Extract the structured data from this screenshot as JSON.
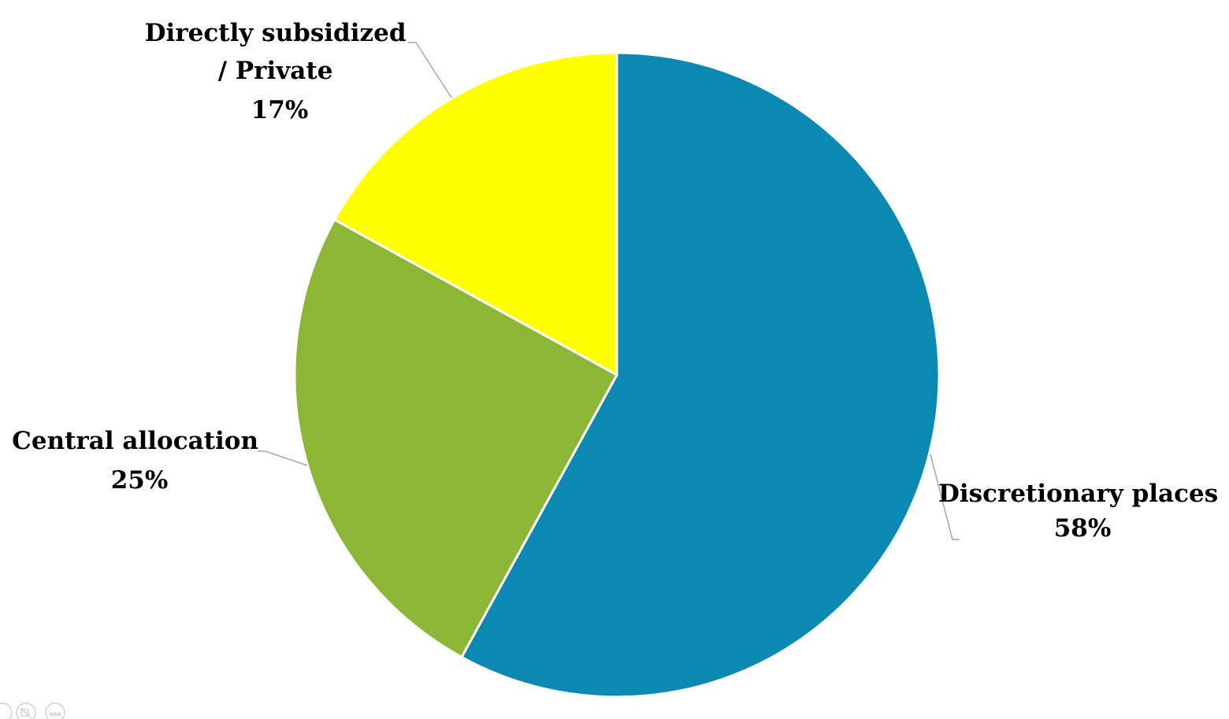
{
  "chart_data": {
    "type": "pie",
    "title": "",
    "start_angle_deg": 0,
    "direction": "clockwise",
    "legend": "none",
    "slices": [
      {
        "label": "Discretionary places",
        "label_lines": [
          "Discretionary places"
        ],
        "value": 58,
        "value_label": "58%",
        "color": "#0b89b3"
      },
      {
        "label": "Central allocation",
        "label_lines": [
          "Central allocation"
        ],
        "value": 25,
        "value_label": "25%",
        "color": "#8cb736"
      },
      {
        "label": "Directly subsidized / Private",
        "label_lines": [
          "Directly subsidized",
          "/ Private"
        ],
        "value": 17,
        "value_label": "17%",
        "color": "#ffff00"
      }
    ]
  }
}
